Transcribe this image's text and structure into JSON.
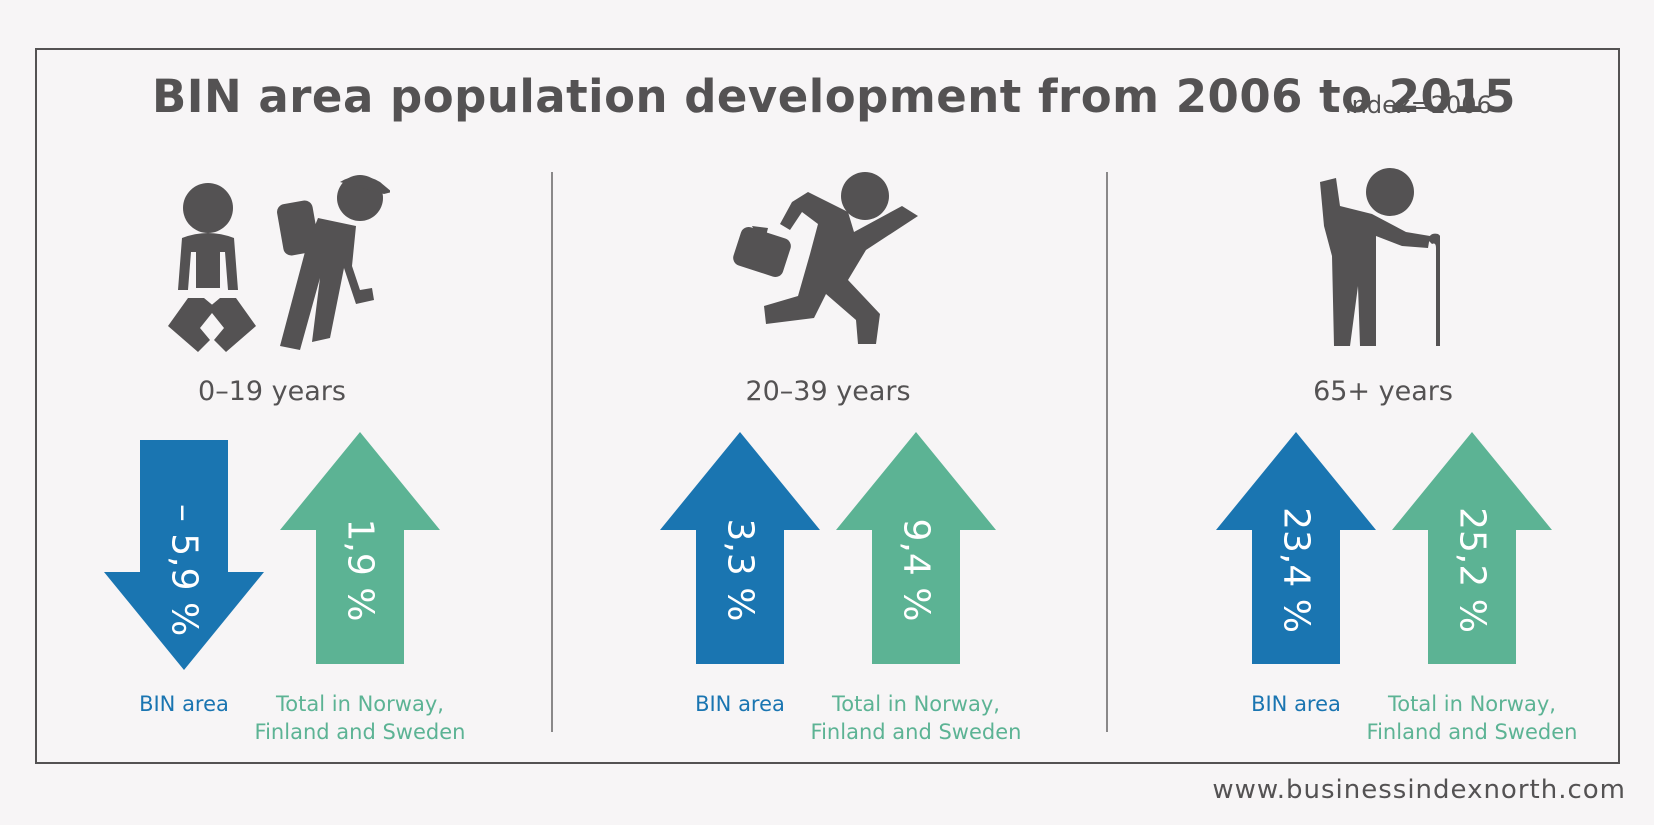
{
  "title": "BIN area population development from 2006 to 2015",
  "subtitle": "index=2006",
  "footer": "www.businessindexnorth.com",
  "colors": {
    "bin": "#1a75b1",
    "total": "#5cb394",
    "text": "#545253",
    "background": "#f7f5f6"
  },
  "chart_data": {
    "type": "bar",
    "title": "BIN area population development from 2006 to 2015",
    "subtitle": "index=2006",
    "unit": "%",
    "categories": [
      "0–19 years",
      "20–39 years",
      "65+ years"
    ],
    "series": [
      {
        "name": "BIN area",
        "values": [
          -5.9,
          3.3,
          23.4
        ],
        "labels": [
          "– 5,9 %",
          "3,3 %",
          "23,4 %"
        ]
      },
      {
        "name": "Total in Norway, Finland and Sweden",
        "values": [
          1.9,
          9.4,
          25.2
        ],
        "labels": [
          "1,9 %",
          "9,4 %",
          "25,2 %"
        ]
      }
    ],
    "legend": {
      "bin_label": "BIN area",
      "total_label_line1": "Total in Norway,",
      "total_label_line2": "Finland and Sweden"
    },
    "icons": [
      "child-and-hiker-icon",
      "running-businessman-icon",
      "elderly-person-with-cane-icon"
    ]
  }
}
